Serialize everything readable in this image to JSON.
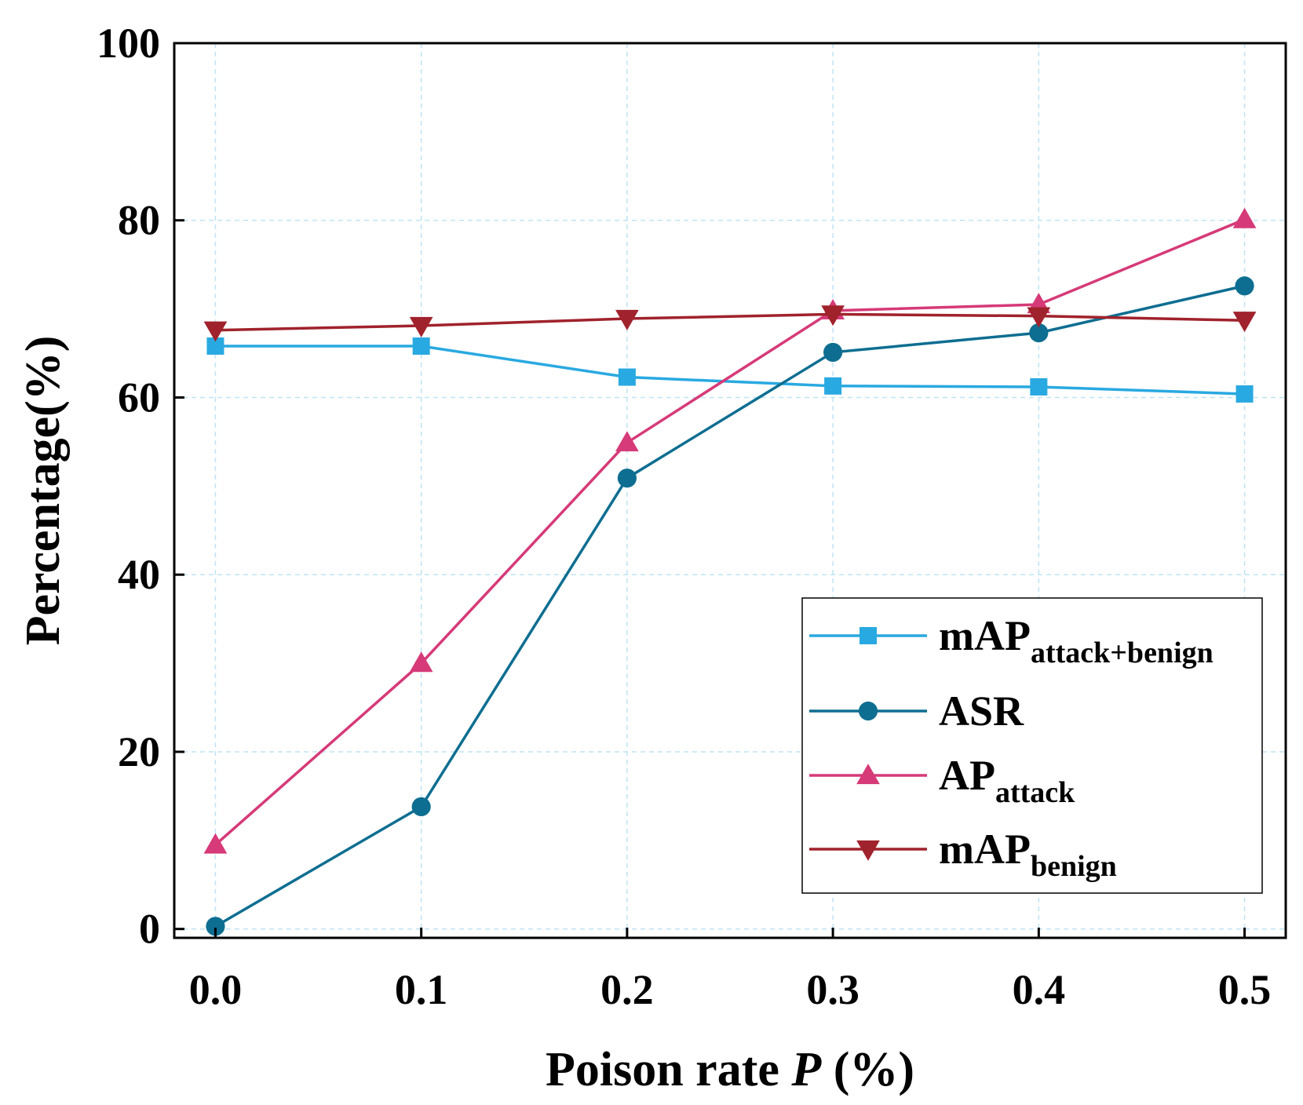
{
  "chart_data": {
    "type": "line",
    "xlabel": {
      "prefix": "Poison rate ",
      "italic": "P",
      "suffix": " (%)"
    },
    "ylabel": "Percentage(%)",
    "x": [
      0.0,
      0.1,
      0.2,
      0.3,
      0.4,
      0.5
    ],
    "x_tick_labels": [
      "0.0",
      "0.1",
      "0.2",
      "0.3",
      "0.4",
      "0.5"
    ],
    "y_tick_labels": [
      "0",
      "20",
      "40",
      "60",
      "80",
      "100"
    ],
    "xlim": [
      -0.02,
      0.52
    ],
    "ylim": [
      -1,
      100
    ],
    "grid": true,
    "legend_position": "bottom-right",
    "series": [
      {
        "name": "mAP",
        "subscript": "attack+benign",
        "color": "#29a9e1",
        "marker": "square",
        "values": [
          65.8,
          65.8,
          62.3,
          61.3,
          61.2,
          60.4
        ]
      },
      {
        "name": "ASR",
        "subscript": "",
        "color": "#0e6e91",
        "marker": "circle",
        "values": [
          0.3,
          13.8,
          50.9,
          65.1,
          67.3,
          72.6
        ]
      },
      {
        "name": "AP",
        "subscript": "attack",
        "color": "#d63a78",
        "marker": "triangle-up",
        "values": [
          9.5,
          30.0,
          54.9,
          69.8,
          70.5,
          80.1
        ]
      },
      {
        "name": "mAP",
        "subscript": "benign",
        "color": "#a0222c",
        "marker": "triangle-down",
        "values": [
          67.6,
          68.1,
          68.9,
          69.4,
          69.2,
          68.7
        ]
      }
    ]
  }
}
